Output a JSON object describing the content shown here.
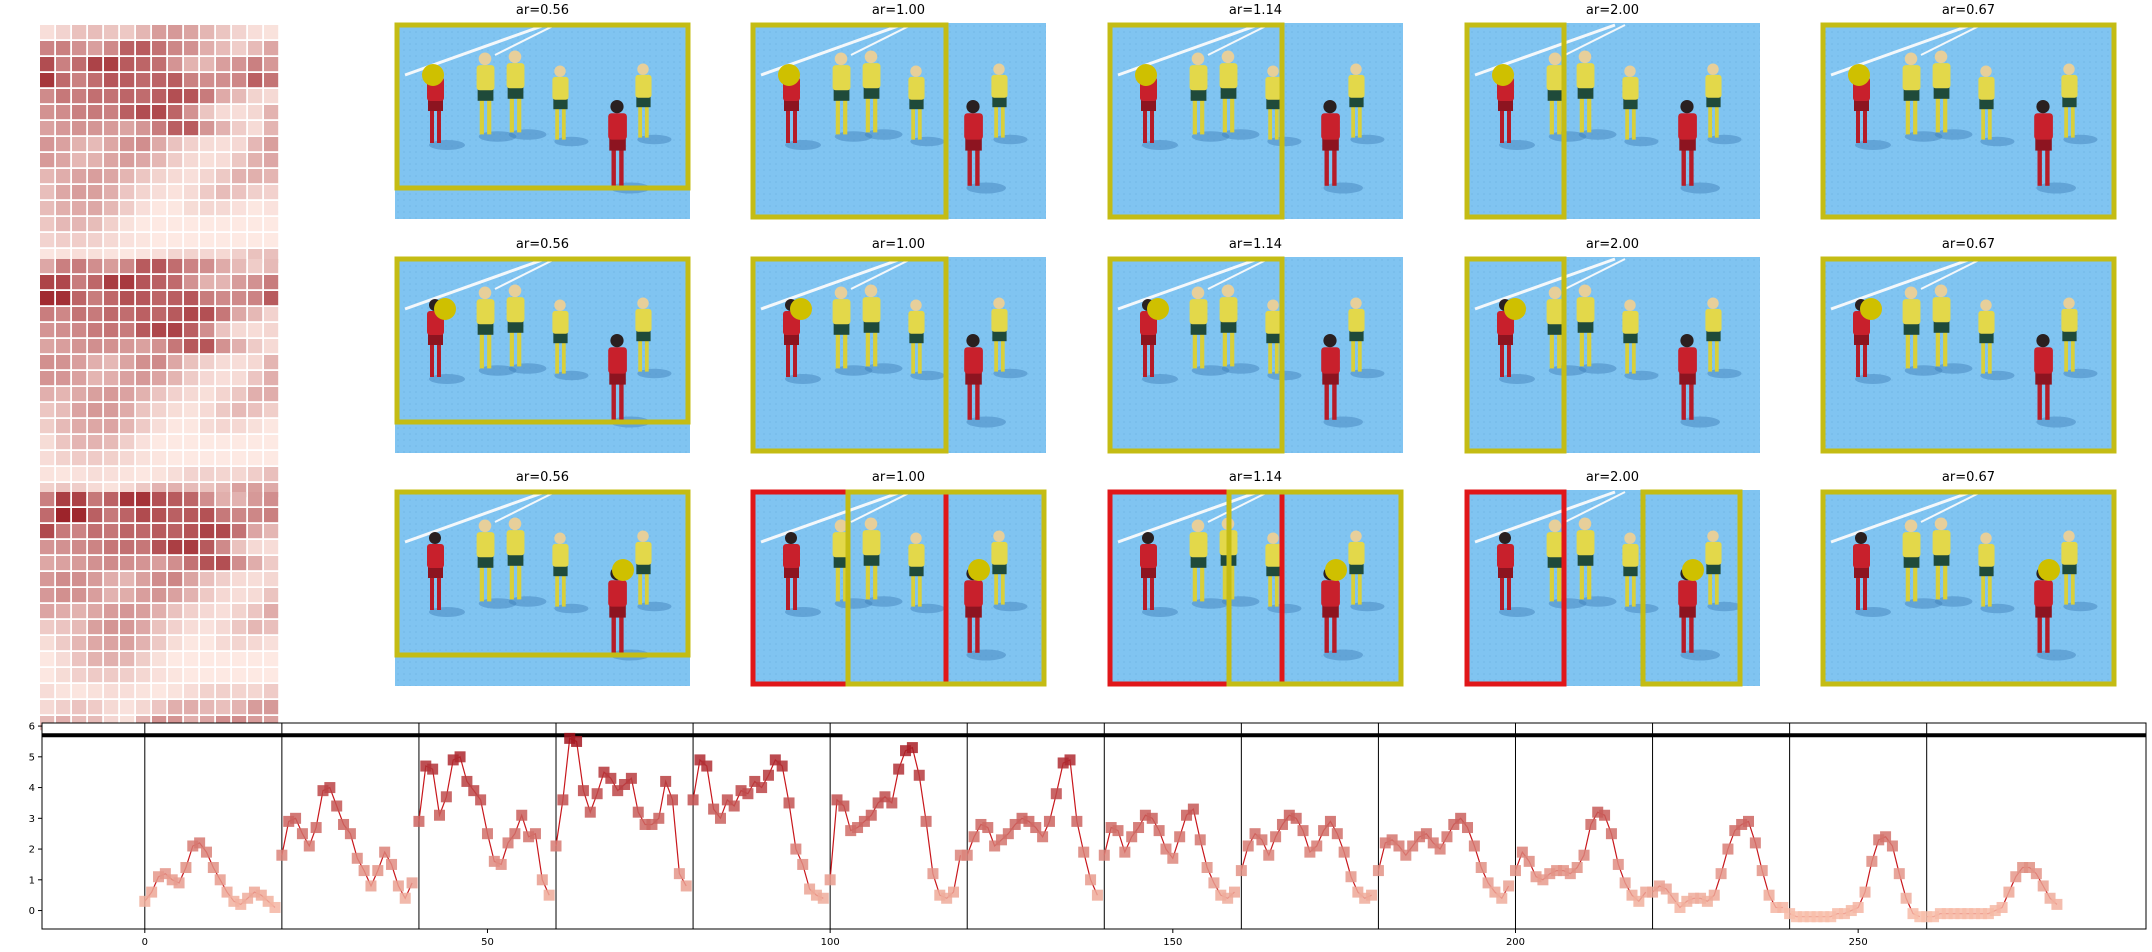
{
  "panel_titles": [
    [
      "ar=0.56",
      "ar=1.00",
      "ar=1.14",
      "ar=2.00",
      "ar=0.67"
    ],
    [
      "ar=0.56",
      "ar=1.00",
      "ar=1.14",
      "ar=2.00",
      "ar=0.67"
    ],
    [
      "ar=0.56",
      "ar=1.00",
      "ar=1.14",
      "ar=2.00",
      "ar=0.67"
    ]
  ],
  "colors": {
    "box_yellow": "#c4bc14",
    "box_red": "#e0171a",
    "marker_yellow": "#cfc000",
    "turf": "#7fc3f0",
    "heat_dark": "#9a1d24",
    "heat_light": "#fde9e3"
  },
  "chart_data": {
    "type": "line",
    "title": "",
    "xlabel": "",
    "ylabel": "",
    "xlim": [
      -15,
      292
    ],
    "ylim": [
      -0.6,
      6.1
    ],
    "xticks": [
      0,
      50,
      100,
      150,
      200,
      250
    ],
    "yticks": [
      0,
      1,
      2,
      3,
      4,
      5,
      6
    ],
    "grid": false,
    "legend": "none",
    "threshold": 5.7,
    "separators": [
      0,
      20,
      40,
      60,
      80,
      100,
      120,
      140,
      160,
      180,
      200,
      220,
      240,
      260
    ],
    "series": [
      {
        "values": [
          0.3,
          0.6,
          1.1,
          1.2,
          1.0,
          0.9,
          1.4,
          2.1,
          2.2,
          1.9,
          1.4,
          1.0,
          0.6,
          0.3,
          0.2,
          0.4,
          0.6,
          0.5,
          0.3,
          0.1
        ]
      },
      {
        "values": [
          1.8,
          2.9,
          3.0,
          2.5,
          2.1,
          2.7,
          3.9,
          4.0,
          3.4,
          2.8,
          2.5,
          1.7,
          1.3,
          0.8,
          1.3,
          1.9,
          1.5,
          0.8,
          0.4,
          0.9
        ]
      },
      {
        "values": [
          2.9,
          4.7,
          4.6,
          3.1,
          3.7,
          4.9,
          5.0,
          4.2,
          3.9,
          3.6,
          2.5,
          1.6,
          1.5,
          2.2,
          2.5,
          3.1,
          2.4,
          2.5,
          1.0,
          0.5
        ]
      },
      {
        "values": [
          2.1,
          3.6,
          5.6,
          5.5,
          3.9,
          3.2,
          3.8,
          4.5,
          4.3,
          3.9,
          4.1,
          4.3,
          3.2,
          2.8,
          2.8,
          3.0,
          4.2,
          3.6,
          1.2,
          0.8
        ]
      },
      {
        "values": [
          3.6,
          4.9,
          4.7,
          3.3,
          3.0,
          3.6,
          3.4,
          3.9,
          3.8,
          4.2,
          4.0,
          4.4,
          4.9,
          4.7,
          3.5,
          2.0,
          1.5,
          0.7,
          0.5,
          0.4
        ]
      },
      {
        "values": [
          1.0,
          3.6,
          3.4,
          2.6,
          2.7,
          2.9,
          3.1,
          3.5,
          3.7,
          3.5,
          4.6,
          5.2,
          5.3,
          4.4,
          2.9,
          1.2,
          0.5,
          0.4,
          0.6,
          1.8
        ]
      },
      {
        "values": [
          1.8,
          2.4,
          2.8,
          2.7,
          2.1,
          2.3,
          2.5,
          2.8,
          3.0,
          2.9,
          2.7,
          2.4,
          2.9,
          3.8,
          4.8,
          4.9,
          2.9,
          1.9,
          1.0,
          0.5
        ]
      },
      {
        "values": [
          1.8,
          2.7,
          2.6,
          1.9,
          2.4,
          2.7,
          3.1,
          3.0,
          2.6,
          2.0,
          1.7,
          2.4,
          3.1,
          3.3,
          2.3,
          1.4,
          0.9,
          0.5,
          0.4,
          0.6
        ]
      },
      {
        "values": [
          1.3,
          2.1,
          2.5,
          2.3,
          1.8,
          2.4,
          2.8,
          3.1,
          3.0,
          2.6,
          1.9,
          2.1,
          2.6,
          2.9,
          2.5,
          1.9,
          1.1,
          0.6,
          0.4,
          0.5
        ]
      },
      {
        "values": [
          1.3,
          2.2,
          2.3,
          2.1,
          1.8,
          2.1,
          2.4,
          2.5,
          2.2,
          2.0,
          2.4,
          2.8,
          3.0,
          2.7,
          2.1,
          1.4,
          0.9,
          0.6,
          0.4,
          0.8
        ]
      },
      {
        "values": [
          1.3,
          1.9,
          1.6,
          1.1,
          1.0,
          1.2,
          1.3,
          1.3,
          1.2,
          1.4,
          1.8,
          2.8,
          3.2,
          3.1,
          2.5,
          1.5,
          0.9,
          0.5,
          0.3,
          0.6
        ]
      },
      {
        "values": [
          0.6,
          0.8,
          0.7,
          0.4,
          0.1,
          0.3,
          0.4,
          0.4,
          0.3,
          0.5,
          1.2,
          2.0,
          2.6,
          2.8,
          2.9,
          2.2,
          1.3,
          0.5,
          0.1,
          0.1
        ]
      },
      {
        "values": [
          -0.1,
          -0.2,
          -0.2,
          -0.2,
          -0.2,
          -0.2,
          -0.2,
          -0.1,
          -0.1,
          0.0,
          0.1,
          0.6,
          1.6,
          2.3,
          2.4,
          2.1,
          1.2,
          0.4,
          -0.1,
          -0.2
        ]
      },
      {
        "values": [
          -0.2,
          -0.2,
          -0.1,
          -0.1,
          -0.1,
          -0.1,
          -0.1,
          -0.1,
          -0.1,
          -0.1,
          0.0,
          0.1,
          0.6,
          1.1,
          1.4,
          1.4,
          1.2,
          0.8,
          0.4,
          0.2
        ]
      }
    ]
  }
}
